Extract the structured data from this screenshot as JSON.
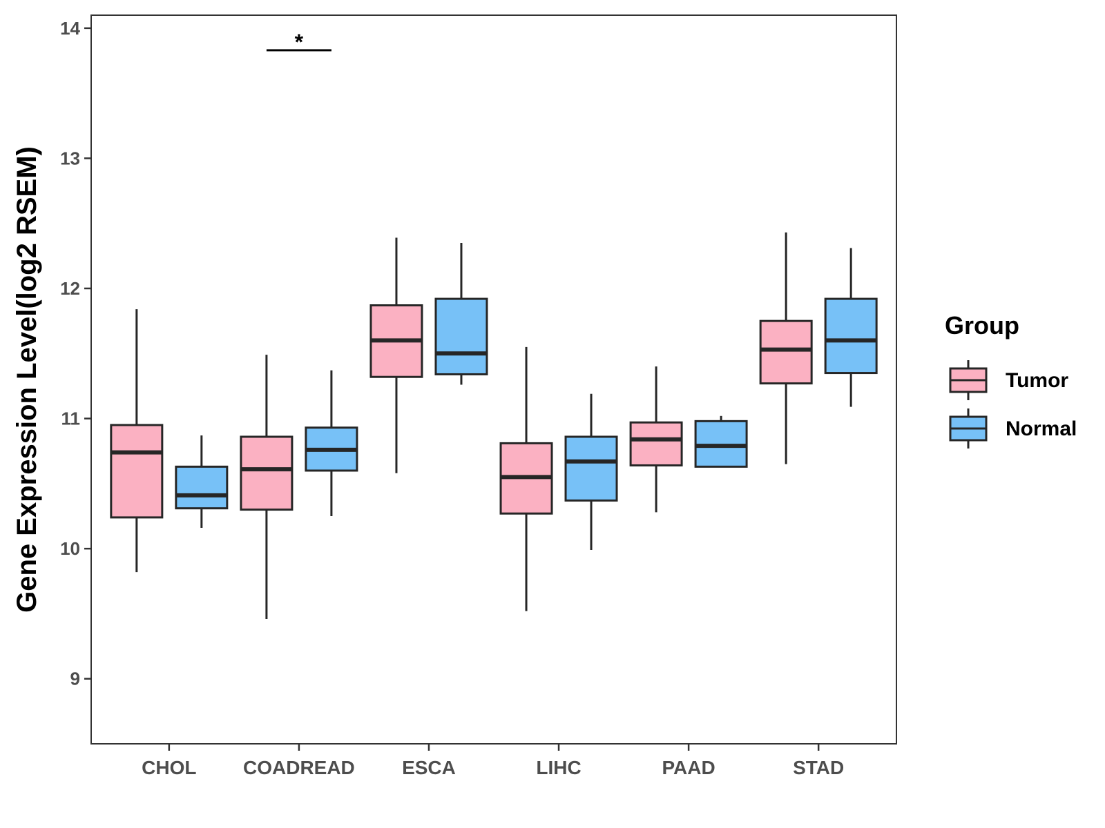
{
  "chart_data": {
    "type": "boxplot",
    "title": "",
    "xlabel": "",
    "ylabel": "Gene Expression Level(log2 RSEM)",
    "ylim": [
      8.5,
      14.1
    ],
    "yticks": [
      9,
      10,
      11,
      12,
      13,
      14
    ],
    "grid": false,
    "categories": [
      "CHOL",
      "COADREAD",
      "ESCA",
      "LIHC",
      "PAAD",
      "STAD"
    ],
    "legend": {
      "title": "Group",
      "placement": "right",
      "entries": [
        {
          "label": "Tumor",
          "color": "#FBB1C2"
        },
        {
          "label": "Normal",
          "color": "#77C1F7"
        }
      ]
    },
    "series": [
      {
        "name": "Tumor",
        "color": "#FBB1C2",
        "boxes": [
          {
            "min": 9.82,
            "q1": 10.24,
            "median": 10.74,
            "q3": 10.95,
            "max": 11.84
          },
          {
            "min": 9.46,
            "q1": 10.3,
            "median": 10.61,
            "q3": 10.86,
            "max": 11.49
          },
          {
            "min": 10.58,
            "q1": 11.32,
            "median": 11.6,
            "q3": 11.87,
            "max": 12.39
          },
          {
            "min": 9.52,
            "q1": 10.27,
            "median": 10.55,
            "q3": 10.81,
            "max": 11.55
          },
          {
            "min": 10.28,
            "q1": 10.64,
            "median": 10.84,
            "q3": 10.97,
            "max": 11.4
          },
          {
            "min": 10.65,
            "q1": 11.27,
            "median": 11.53,
            "q3": 11.75,
            "max": 12.43
          }
        ]
      },
      {
        "name": "Normal",
        "color": "#77C1F7",
        "boxes": [
          {
            "min": 10.16,
            "q1": 10.31,
            "median": 10.41,
            "q3": 10.63,
            "max": 10.87
          },
          {
            "min": 10.25,
            "q1": 10.6,
            "median": 10.76,
            "q3": 10.93,
            "max": 11.37
          },
          {
            "min": 11.26,
            "q1": 11.34,
            "median": 11.5,
            "q3": 11.92,
            "max": 12.35
          },
          {
            "min": 9.99,
            "q1": 10.37,
            "median": 10.67,
            "q3": 10.86,
            "max": 11.19
          },
          {
            "min": 10.63,
            "q1": 10.63,
            "median": 10.79,
            "q3": 10.98,
            "max": 11.02
          },
          {
            "min": 11.09,
            "q1": 11.35,
            "median": 11.6,
            "q3": 11.92,
            "max": 12.31
          }
        ]
      }
    ],
    "annotations": [
      {
        "category": "COADREAD",
        "text": "*",
        "y": 13.83
      }
    ]
  }
}
